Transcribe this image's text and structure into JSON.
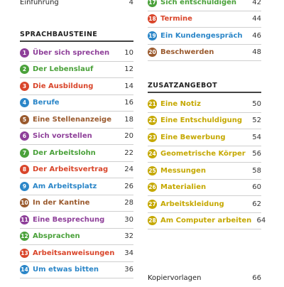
{
  "left": {
    "intro": {
      "title": "Einführung",
      "page": "4"
    },
    "section_title": "SPRACHBAUSTEINE",
    "items": [
      {
        "num": "1",
        "title": "Über sich sprechen",
        "page": "10",
        "color": "#8e3f99"
      },
      {
        "num": "2",
        "title": "Der Lebenslauf",
        "page": "12",
        "color": "#4aa13a"
      },
      {
        "num": "3",
        "title": "Die Ausbildung",
        "page": "14",
        "color": "#d9452a"
      },
      {
        "num": "4",
        "title": "Berufe",
        "page": "16",
        "color": "#2b86c8"
      },
      {
        "num": "5",
        "title": "Eine Stellenanzeige",
        "page": "18",
        "color": "#9a5a2e"
      },
      {
        "num": "6",
        "title": "Sich vorstellen",
        "page": "20",
        "color": "#8e3f99"
      },
      {
        "num": "7",
        "title": "Der Arbeitslohn",
        "page": "22",
        "color": "#4aa13a"
      },
      {
        "num": "8",
        "title": "Der Arbeitsvertrag",
        "page": "24",
        "color": "#d9452a"
      },
      {
        "num": "9",
        "title": "Am Arbeitsplatz",
        "page": "26",
        "color": "#2b86c8"
      },
      {
        "num": "10",
        "title": "In der Kantine",
        "page": "28",
        "color": "#9a5a2e"
      },
      {
        "num": "11",
        "title": "Eine Besprechung",
        "page": "30",
        "color": "#8e3f99"
      },
      {
        "num": "12",
        "title": "Absprachen",
        "page": "32",
        "color": "#4aa13a"
      },
      {
        "num": "13",
        "title": "Arbeitsanweisungen",
        "page": "34",
        "color": "#d9452a"
      },
      {
        "num": "14",
        "title": "Um etwas bitten",
        "page": "36",
        "color": "#2b86c8"
      }
    ]
  },
  "right": {
    "items_top": [
      {
        "num": "17",
        "title": "Sich entschuldigen",
        "page": "42",
        "color": "#4aa13a"
      },
      {
        "num": "18",
        "title": "Termine",
        "page": "44",
        "color": "#d9452a"
      },
      {
        "num": "19",
        "title": "Ein Kundengespräch",
        "page": "46",
        "color": "#2b86c8"
      },
      {
        "num": "20",
        "title": "Beschwerden",
        "page": "48",
        "color": "#9a5a2e"
      }
    ],
    "section_title": "ZUSATZANGEBOT",
    "items_extra": [
      {
        "num": "21",
        "title": "Eine Notiz",
        "page": "50",
        "color": "#c5a800"
      },
      {
        "num": "22",
        "title": "Eine Entschuldigung",
        "page": "52",
        "color": "#c5a800"
      },
      {
        "num": "23",
        "title": "Eine Bewerbung",
        "page": "54",
        "color": "#c5a800"
      },
      {
        "num": "24",
        "title": "Geometrische Körper",
        "page": "56",
        "color": "#c5a800"
      },
      {
        "num": "25",
        "title": "Messungen",
        "page": "58",
        "color": "#c5a800"
      },
      {
        "num": "26",
        "title": "Materialien",
        "page": "60",
        "color": "#c5a800"
      },
      {
        "num": "27",
        "title": "Arbeitskleidung",
        "page": "62",
        "color": "#c5a800"
      },
      {
        "num": "28",
        "title": "Am Computer arbeiten",
        "page": "64",
        "color": "#c5a800"
      }
    ],
    "bottom": {
      "title": "Kopiervorlagen",
      "page": "66"
    }
  }
}
